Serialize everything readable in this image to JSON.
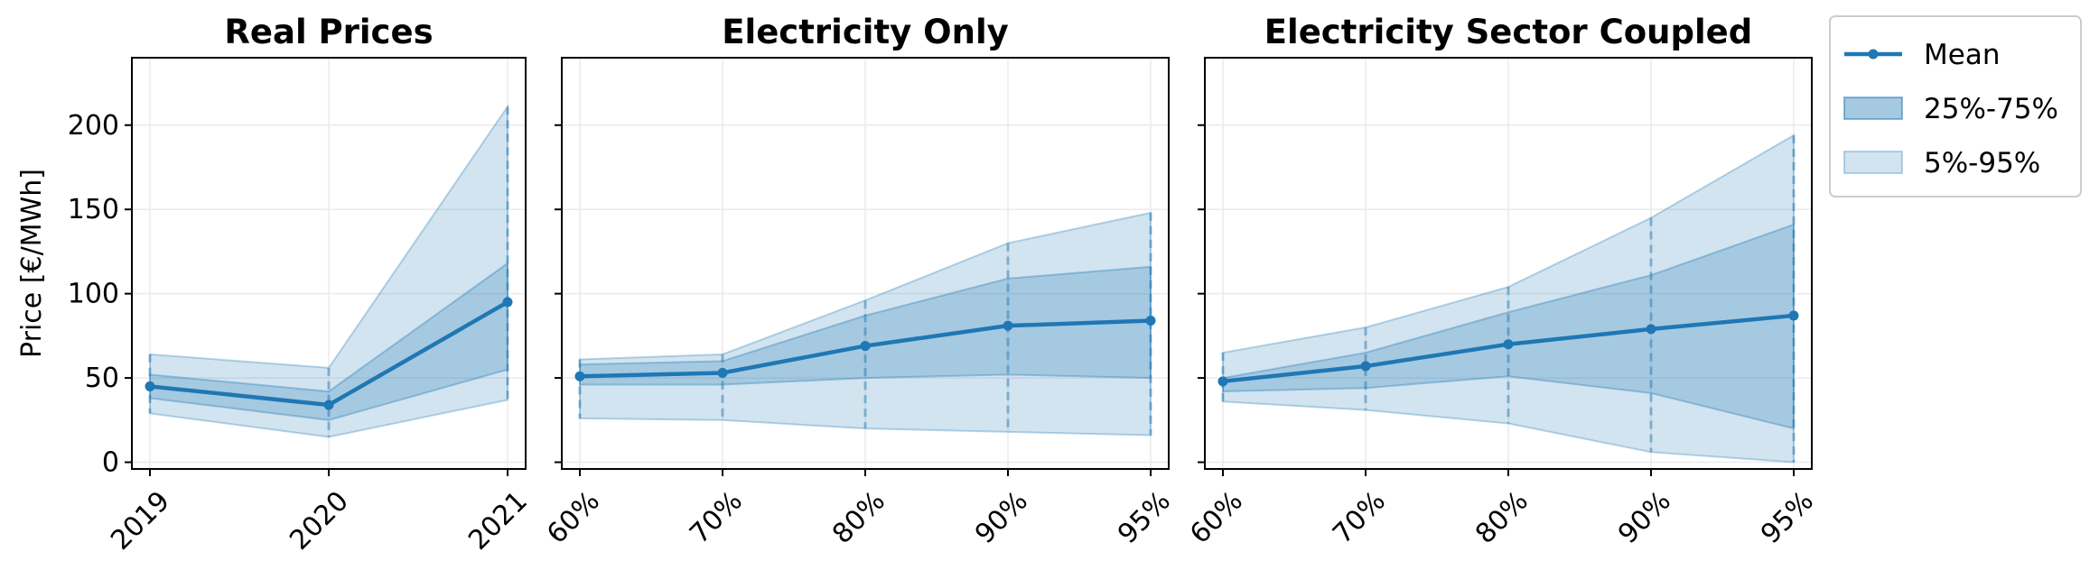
{
  "chart_data": {
    "type": "line",
    "ylabel": "Price [€/MWh]",
    "ylim": [
      -4,
      240
    ],
    "yticks": [
      0,
      50,
      100,
      150,
      200
    ],
    "grid": true,
    "shared_y": true,
    "legend": {
      "placement": "outside-top-right",
      "entries": [
        "Mean",
        "25%-75%",
        "5%-95%"
      ]
    },
    "colors": {
      "line": "#1f77b4",
      "band_inner": "#1f77b4",
      "band_outer": "#1f77b4",
      "grid": "#ebebeb"
    },
    "panels": [
      {
        "title": "Real Prices",
        "categories": [
          "2019",
          "2020",
          "2021"
        ],
        "mean": [
          45,
          34,
          95
        ],
        "p25": [
          38,
          25,
          55
        ],
        "p75": [
          52,
          42,
          118
        ],
        "p5": [
          29,
          15,
          37
        ],
        "p95": [
          64,
          56,
          211
        ]
      },
      {
        "title": "Electricity Only",
        "categories": [
          "60%",
          "70%",
          "80%",
          "90%",
          "95%"
        ],
        "mean": [
          51,
          53,
          69,
          81,
          84
        ],
        "p25": [
          46,
          46,
          50,
          52,
          50
        ],
        "p75": [
          58,
          60,
          87,
          109,
          116
        ],
        "p5": [
          26,
          25,
          20,
          18,
          16
        ],
        "p95": [
          61,
          64,
          96,
          130,
          148
        ]
      },
      {
        "title": "Electricity Sector Coupled",
        "categories": [
          "60%",
          "70%",
          "80%",
          "90%",
          "95%"
        ],
        "mean": [
          48,
          57,
          70,
          79,
          87
        ],
        "p25": [
          42,
          44,
          51,
          41,
          20
        ],
        "p75": [
          50,
          65,
          89,
          111,
          141
        ],
        "p5": [
          36,
          31,
          23,
          6,
          0
        ],
        "p95": [
          65,
          80,
          104,
          145,
          194
        ]
      }
    ]
  }
}
